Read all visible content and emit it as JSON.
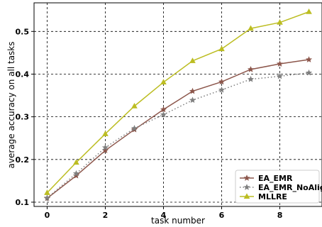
{
  "chart_data": {
    "type": "line",
    "xlabel": "task number",
    "ylabel": "average accuracy on all tasks",
    "xlim": [
      -0.45,
      9.45
    ],
    "ylim": [
      0.09,
      0.567
    ],
    "x_ticks": [
      0,
      2,
      4,
      6,
      8
    ],
    "y_ticks": [
      0.1,
      0.2,
      0.3,
      0.4,
      0.5
    ],
    "x_tick_labels": [
      "0",
      "2",
      "4",
      "6",
      "8"
    ],
    "y_tick_labels": [
      "0.1",
      "0.2",
      "0.3",
      "0.4",
      "0.5"
    ],
    "grid": true,
    "legend_position": "bottom-right",
    "x": [
      0,
      1,
      2,
      3,
      4,
      5,
      6,
      7,
      8,
      9
    ],
    "series": [
      {
        "name": "EA_EMR",
        "color": "#8c564b",
        "line_style": "solid",
        "marker": "star",
        "values": [
          0.109,
          0.162,
          0.221,
          0.27,
          0.317,
          0.36,
          0.382,
          0.411,
          0.424,
          0.434
        ]
      },
      {
        "name": "EA_EMR_NoAlign",
        "color": "#7f7f7f",
        "line_style": "dotted",
        "marker": "star",
        "values": [
          0.11,
          0.167,
          0.228,
          0.273,
          0.305,
          0.339,
          0.363,
          0.388,
          0.395,
          0.403
        ]
      },
      {
        "name": "MLLRE",
        "color": "#bcbd22",
        "line_style": "solid",
        "marker": "triangle",
        "values": [
          0.122,
          0.193,
          0.26,
          0.325,
          0.381,
          0.431,
          0.459,
          0.507,
          0.521,
          0.546
        ]
      }
    ]
  }
}
